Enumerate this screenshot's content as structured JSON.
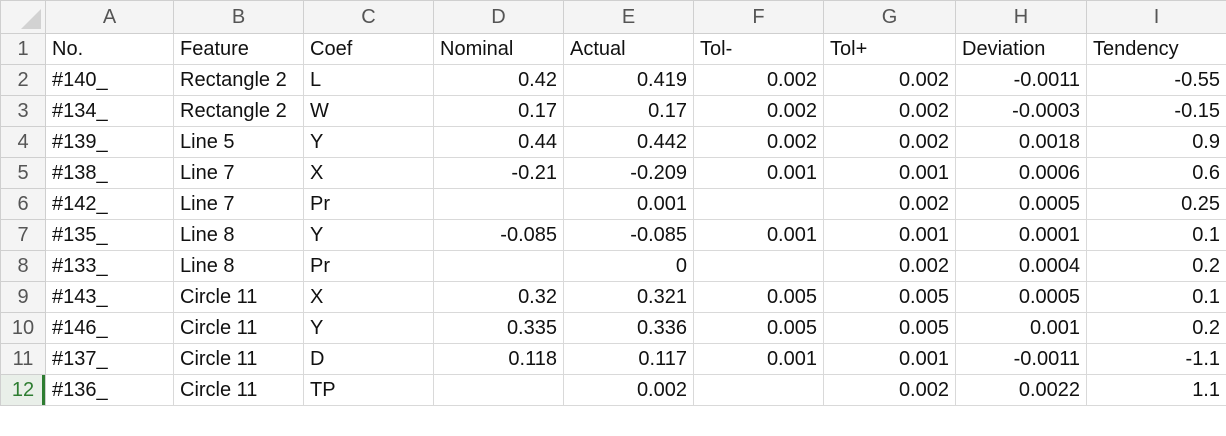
{
  "sheet": {
    "column_letters": [
      "A",
      "B",
      "C",
      "D",
      "E",
      "F",
      "G",
      "H",
      "I"
    ],
    "column_align": [
      "left",
      "left",
      "left",
      "right",
      "right",
      "right",
      "right",
      "right",
      "right"
    ],
    "selected_row": 12,
    "rows": [
      {
        "n": "1",
        "cells": [
          "No.",
          "Feature",
          "Coef",
          "Nominal",
          "Actual",
          "Tol-",
          "Tol+",
          "Deviation",
          "Tendency"
        ],
        "header": true
      },
      {
        "n": "2",
        "cells": [
          "#140_",
          "Rectangle 2",
          "L",
          "0.42",
          "0.419",
          "0.002",
          "0.002",
          "-0.0011",
          "-0.55"
        ]
      },
      {
        "n": "3",
        "cells": [
          "#134_",
          "Rectangle 2",
          "W",
          "0.17",
          "0.17",
          "0.002",
          "0.002",
          "-0.0003",
          "-0.15"
        ]
      },
      {
        "n": "4",
        "cells": [
          "#139_",
          "Line 5",
          "Y",
          "0.44",
          "0.442",
          "0.002",
          "0.002",
          "0.0018",
          "0.9"
        ]
      },
      {
        "n": "5",
        "cells": [
          "#138_",
          "Line 7",
          "X",
          "-0.21",
          "-0.209",
          "0.001",
          "0.001",
          "0.0006",
          "0.6"
        ]
      },
      {
        "n": "6",
        "cells": [
          "#142_",
          "Line 7",
          "Pr",
          "",
          "0.001",
          "",
          "0.002",
          "0.0005",
          "0.25"
        ]
      },
      {
        "n": "7",
        "cells": [
          "#135_",
          "Line 8",
          "Y",
          "-0.085",
          "-0.085",
          "0.001",
          "0.001",
          "0.0001",
          "0.1"
        ]
      },
      {
        "n": "8",
        "cells": [
          "#133_",
          "Line 8",
          "Pr",
          "",
          "0",
          "",
          "0.002",
          "0.0004",
          "0.2"
        ]
      },
      {
        "n": "9",
        "cells": [
          "#143_",
          "Circle 11",
          "X",
          "0.32",
          "0.321",
          "0.005",
          "0.005",
          "0.0005",
          "0.1"
        ]
      },
      {
        "n": "10",
        "cells": [
          "#146_",
          "Circle 11",
          "Y",
          "0.335",
          "0.336",
          "0.005",
          "0.005",
          "0.001",
          "0.2"
        ]
      },
      {
        "n": "11",
        "cells": [
          "#137_",
          "Circle 11",
          "D",
          "0.118",
          "0.117",
          "0.001",
          "0.001",
          "-0.0011",
          "-1.1"
        ]
      },
      {
        "n": "12",
        "cells": [
          "#136_",
          "Circle 11",
          "TP",
          "",
          "0.002",
          "",
          "0.002",
          "0.0022",
          "1.1"
        ]
      }
    ]
  }
}
